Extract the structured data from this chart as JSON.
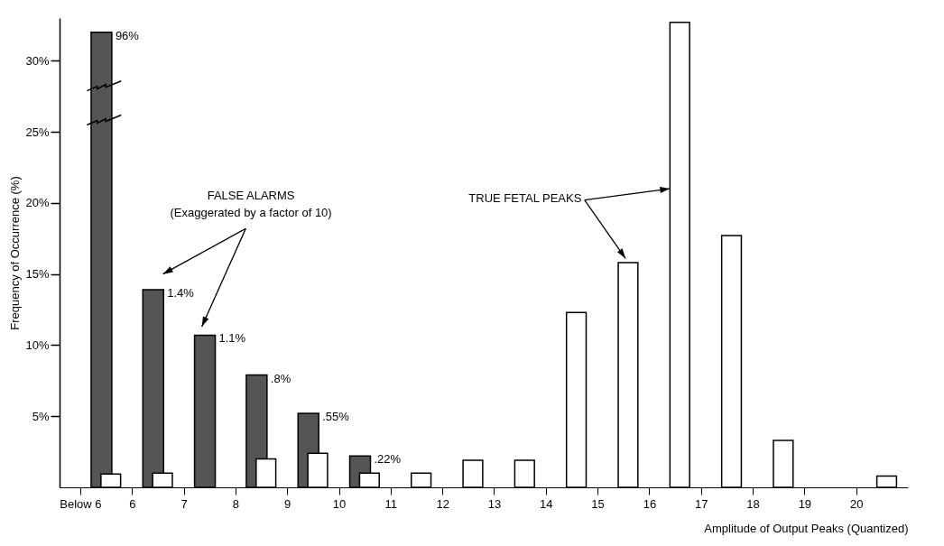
{
  "chart_data": {
    "type": "histogram",
    "xlabel": "Amplitude of Output Peaks (Quantized)",
    "ylabel": "Frequency of Occurrence (%)",
    "bins": [
      5,
      6,
      7,
      8,
      9,
      10,
      11,
      12,
      13,
      14,
      15,
      16,
      17,
      18,
      19,
      20,
      21
    ],
    "xlim": [
      4.6,
      21
    ],
    "xticks": [
      {
        "value": 5,
        "label": "Below 6"
      },
      6,
      7,
      8,
      9,
      10,
      11,
      12,
      13,
      14,
      15,
      16,
      17,
      18,
      19,
      20
    ],
    "ylim": [
      0,
      33
    ],
    "yticks": [
      {
        "value": 5,
        "label": "5%"
      },
      {
        "value": 10,
        "label": "10%"
      },
      {
        "value": 15,
        "label": "15%"
      },
      {
        "value": 20,
        "label": "20%"
      },
      {
        "value": 25,
        "label": "25%"
      },
      {
        "value": 30,
        "label": "30%"
      }
    ],
    "series": [
      {
        "color": "#555555",
        "values": [
          32,
          13.9,
          10.7,
          7.9,
          5.2,
          2.2,
          null,
          null,
          null,
          null,
          null,
          null,
          null,
          null,
          null,
          null
        ]
      },
      {
        "color": "#ffffff",
        "values": [
          0.94,
          1.0,
          null,
          2.0,
          2.4,
          1.0,
          1.0,
          1.9,
          1.9,
          12.3,
          15.8,
          32.7,
          17.7,
          3.3,
          null,
          0.8
        ]
      }
    ],
    "annotations": [
      "FALSE ALARMS",
      "(Exaggerated by a factor of 10)",
      {
        "text": "TRUE FETAL PEAKS",
        "x": 15.59,
        "y": 15.8
      },
      {
        "text": "96%",
        "x": 5.41,
        "y": 32
      },
      {
        "text": "1.4%",
        "x": 6.41,
        "y": 13.9
      },
      {
        "text": "1.1%",
        "x": 7.41,
        "y": 10.7
      },
      {
        "text": ".8%",
        "x": 8.41,
        "y": 7.9
      },
      {
        "text": ".55%",
        "x": 9.41,
        "y": 5.2
      },
      {
        "text": ".22%",
        "x": 10.41,
        "y": 2.2
      }
    ],
    "grid": false
  }
}
